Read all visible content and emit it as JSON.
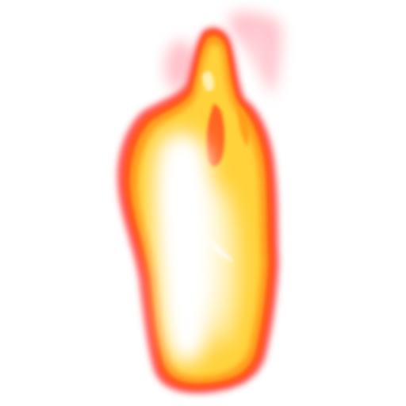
{
  "image": {
    "subject": "flame",
    "icon": "fire-icon",
    "background_color": "#ffffff",
    "colors": {
      "outer_glow": "#ff3b3b",
      "edge": "#ff5a1f",
      "mid": "#ff9a1a",
      "inner": "#ffd23a",
      "core": "#fff6c8",
      "hot_white": "#ffffff"
    }
  }
}
